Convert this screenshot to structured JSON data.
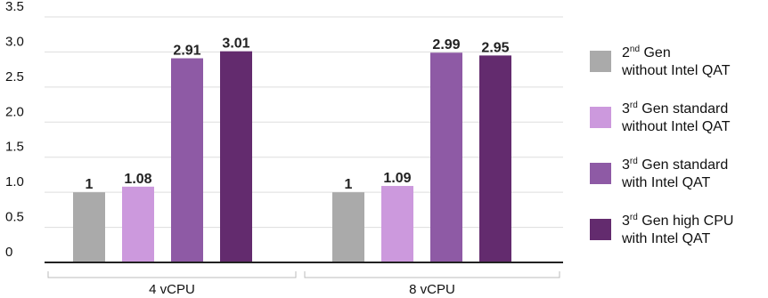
{
  "chart_data": {
    "type": "bar",
    "title": "",
    "xlabel": "",
    "ylabel": "",
    "ylim": [
      0,
      3.5
    ],
    "yticks": [
      "0",
      "0.5",
      "1.0",
      "1.5",
      "2.0",
      "2.5",
      "3.0",
      "3.5"
    ],
    "grid": true,
    "legend_position": "right",
    "categories": [
      "4 vCPU",
      "8 vCPU"
    ],
    "series": [
      {
        "name": {
          "sup": "nd",
          "pre": "2",
          "post": " Gen",
          "line2": "without Intel QAT"
        },
        "color": "#aaaaaa",
        "values": [
          1,
          1
        ],
        "labels": [
          "1",
          "1"
        ]
      },
      {
        "name": {
          "sup": "rd",
          "pre": "3",
          "post": " Gen standard",
          "line2": "without Intel QAT"
        },
        "color": "#cc99dd",
        "values": [
          1.08,
          1.09
        ],
        "labels": [
          "1.08",
          "1.09"
        ]
      },
      {
        "name": {
          "sup": "rd",
          "pre": "3",
          "post": " Gen standard",
          "line2": "with Intel QAT"
        },
        "color": "#8e5aa5",
        "values": [
          2.91,
          2.99
        ],
        "labels": [
          "2.91",
          "2.99"
        ]
      },
      {
        "name": {
          "sup": "rd",
          "pre": "3",
          "post": " Gen high CPU",
          "line2": "with Intel QAT"
        },
        "color": "#632b6e",
        "values": [
          3.01,
          2.95
        ],
        "labels": [
          "3.01",
          "2.95"
        ]
      }
    ]
  }
}
